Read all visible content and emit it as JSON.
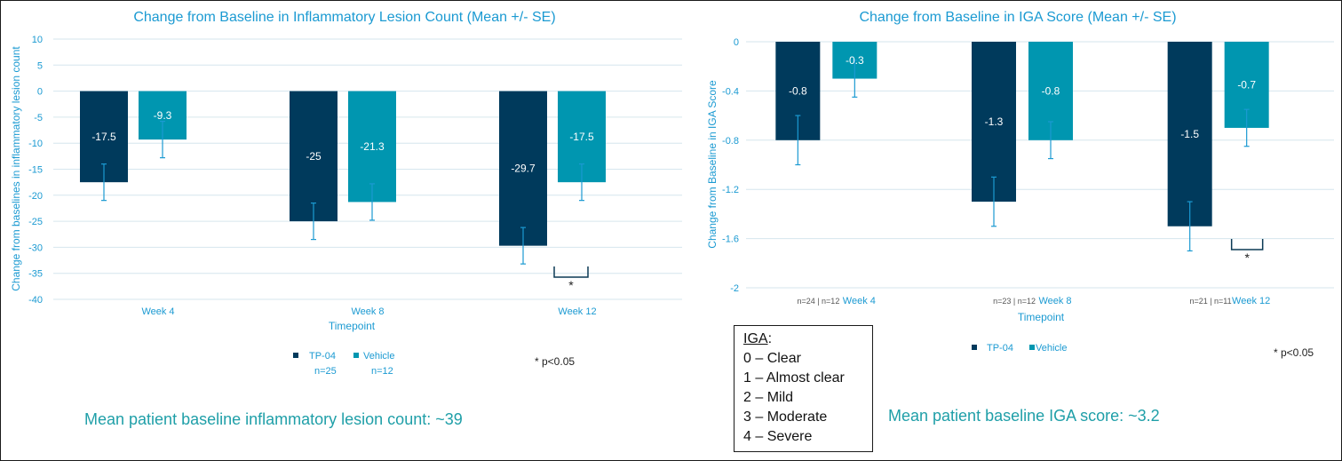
{
  "chart_data": [
    {
      "type": "bar",
      "title": "Change from Baseline in Inflammatory Lesion Count (Mean +/- SE)",
      "xlabel": "Timepoint",
      "ylabel": "Change from baselines in inflammatory lesion count",
      "categories": [
        "Week 4",
        "Week 8",
        "Week 12"
      ],
      "ylim": [
        -40,
        10
      ],
      "yticks": [
        10,
        5,
        0,
        -5,
        -10,
        -15,
        -20,
        -25,
        -30,
        -35,
        -40
      ],
      "grid": true,
      "series": [
        {
          "name": "TP-04",
          "values": [
            -17.5,
            -25,
            -29.7
          ],
          "labels": [
            "-17.5",
            "-25",
            "-29.7"
          ],
          "err_low": [
            -21,
            -28.5,
            -33.2
          ],
          "err_high": [
            -14,
            -21.5,
            -26.2
          ]
        },
        {
          "name": "Vehicle",
          "values": [
            -9.3,
            -21.3,
            -17.5
          ],
          "labels": [
            "-9.3",
            "-21.3",
            "-17.5"
          ],
          "err_low": [
            -12.8,
            -24.8,
            -21
          ],
          "err_high": [
            -5.8,
            -17.8,
            -14
          ]
        }
      ],
      "legend": [
        {
          "name": "TP-04",
          "n": "n=25"
        },
        {
          "name": "Vehicle",
          "n": "n=12"
        }
      ],
      "significance": [
        {
          "category": "Week 12",
          "symbol": "*"
        }
      ],
      "footnote": "* p<0.05",
      "baseline_note": "Mean patient baseline inflammatory lesion count: ~39"
    },
    {
      "type": "bar",
      "title": "Change from Baseline in IGA Score (Mean +/- SE)",
      "xlabel": "Timepoint",
      "ylabel": "Change from Baseline in IGA Score",
      "categories": [
        "Week 4",
        "Week 8",
        "Week 12"
      ],
      "category_n": [
        "n=24 | n=12",
        "n=23 | n=12",
        "n=21 | n=11"
      ],
      "ylim": [
        -2,
        0
      ],
      "yticks": [
        "0",
        "-0.4",
        "-0.8",
        "-1.2",
        "-1.6",
        "-2"
      ],
      "grid": true,
      "series": [
        {
          "name": "TP-04",
          "values": [
            -0.8,
            -1.3,
            -1.5
          ],
          "labels": [
            "-0.8",
            "-1.3",
            "-1.5"
          ],
          "err_low": [
            -1.0,
            -1.5,
            -1.7
          ],
          "err_high": [
            -0.6,
            -1.1,
            -1.3
          ]
        },
        {
          "name": "Vehicle",
          "values": [
            -0.3,
            -0.8,
            -0.7
          ],
          "labels": [
            "-0.3",
            "-0.8",
            "-0.7"
          ],
          "err_low": [
            -0.45,
            -0.95,
            -0.85
          ],
          "err_high": [
            -0.15,
            -0.65,
            -0.55
          ]
        }
      ],
      "legend": [
        {
          "name": "TP-04"
        },
        {
          "name": "Vehicle"
        }
      ],
      "significance": [
        {
          "category": "Week 12",
          "symbol": "*"
        }
      ],
      "footnote": "* p<0.05",
      "baseline_note": "Mean patient baseline IGA score: ~3.2"
    }
  ],
  "colors": {
    "tp04": "#003a5c",
    "vehicle": "#0096b0",
    "error": "#1b9ad2",
    "grid": "#d6e6ee",
    "text": "#1b9ad2"
  },
  "iga_legend": {
    "title": "IGA",
    "colon": ":",
    "items": [
      "0 – Clear",
      "1 – Almost clear",
      "2 – Mild",
      "3 – Moderate",
      "4 – Severe"
    ]
  }
}
